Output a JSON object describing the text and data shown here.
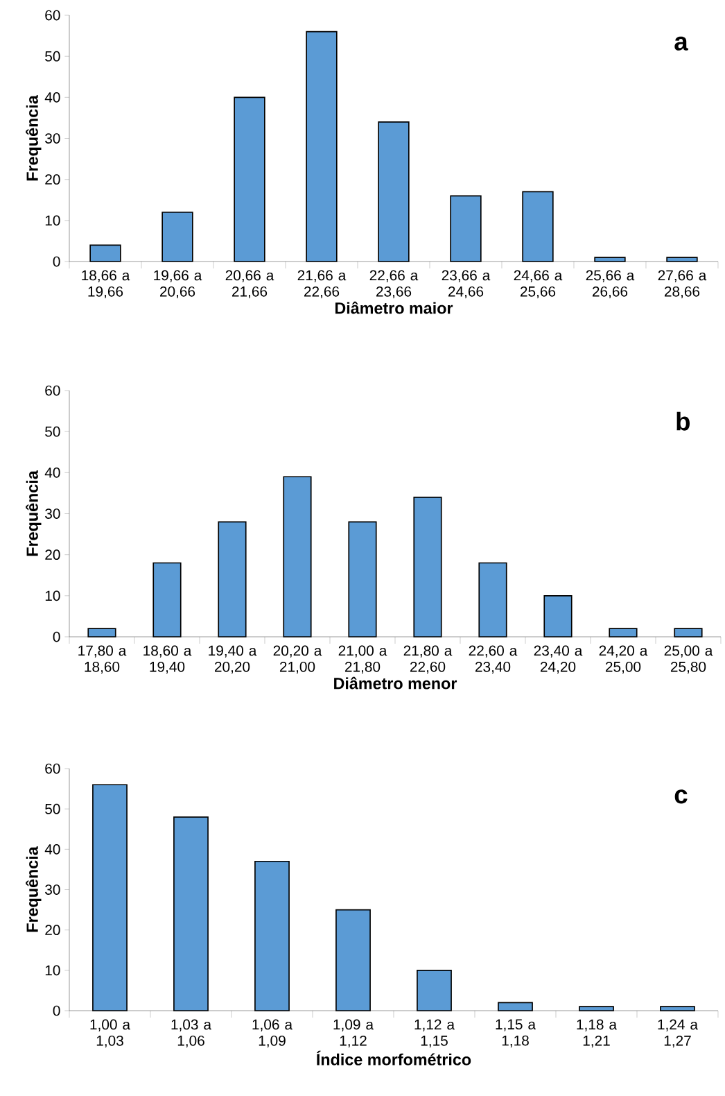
{
  "chart_data": [
    {
      "type": "bar",
      "xlabel": "Diâmetro maior",
      "ylabel": "Frequência",
      "annotations": [
        "a"
      ],
      "color": "#5b9bd5",
      "ylim": [
        0,
        60
      ],
      "yticks": [
        0,
        10,
        20,
        30,
        40,
        50,
        60
      ],
      "grid": false,
      "categories": [
        "18,66 a 19,66",
        "19,66 a 20,66",
        "20,66 a 21,66",
        "21,66 a 22,66",
        "22,66 a 23,66",
        "23,66 a 24,66",
        "24,66 a 25,66",
        "25,66 a 26,66",
        "27,66 a 28,66"
      ],
      "values": [
        4,
        12,
        40,
        56,
        34,
        16,
        17,
        1,
        1
      ]
    },
    {
      "type": "bar",
      "xlabel": "Diâmetro menor",
      "ylabel": "Frequência",
      "annotations": [
        "b"
      ],
      "color": "#5b9bd5",
      "ylim": [
        0,
        60
      ],
      "yticks": [
        0,
        10,
        20,
        30,
        40,
        50,
        60
      ],
      "grid": false,
      "categories": [
        "17,80 a 18,60",
        "18,60 a 19,40",
        "19,40 a 20,20",
        "20,20 a 21,00",
        "21,00 a 21,80",
        "21,80 a 22,60",
        "22,60 a 23,40",
        "23,40 a 24,20",
        "24,20 a 25,00",
        "25,00 a 25,80"
      ],
      "values": [
        2,
        18,
        28,
        39,
        28,
        34,
        18,
        10,
        2,
        2
      ]
    },
    {
      "type": "bar",
      "xlabel": "Índice morfométrico",
      "ylabel": "Frequência",
      "annotations": [
        "c"
      ],
      "color": "#5b9bd5",
      "ylim": [
        0,
        60
      ],
      "yticks": [
        0,
        10,
        20,
        30,
        40,
        50,
        60
      ],
      "grid": false,
      "categories": [
        "1,00 a 1,03",
        "1,03 a 1,06",
        "1,06 a 1,09",
        "1,09 a 1,12",
        "1,12 a 1,15",
        "1,15 a 1,18",
        "1,18 a 1,21",
        "1,24 a 1,27"
      ],
      "values": [
        56,
        48,
        37,
        25,
        10,
        2,
        1,
        1
      ]
    }
  ]
}
